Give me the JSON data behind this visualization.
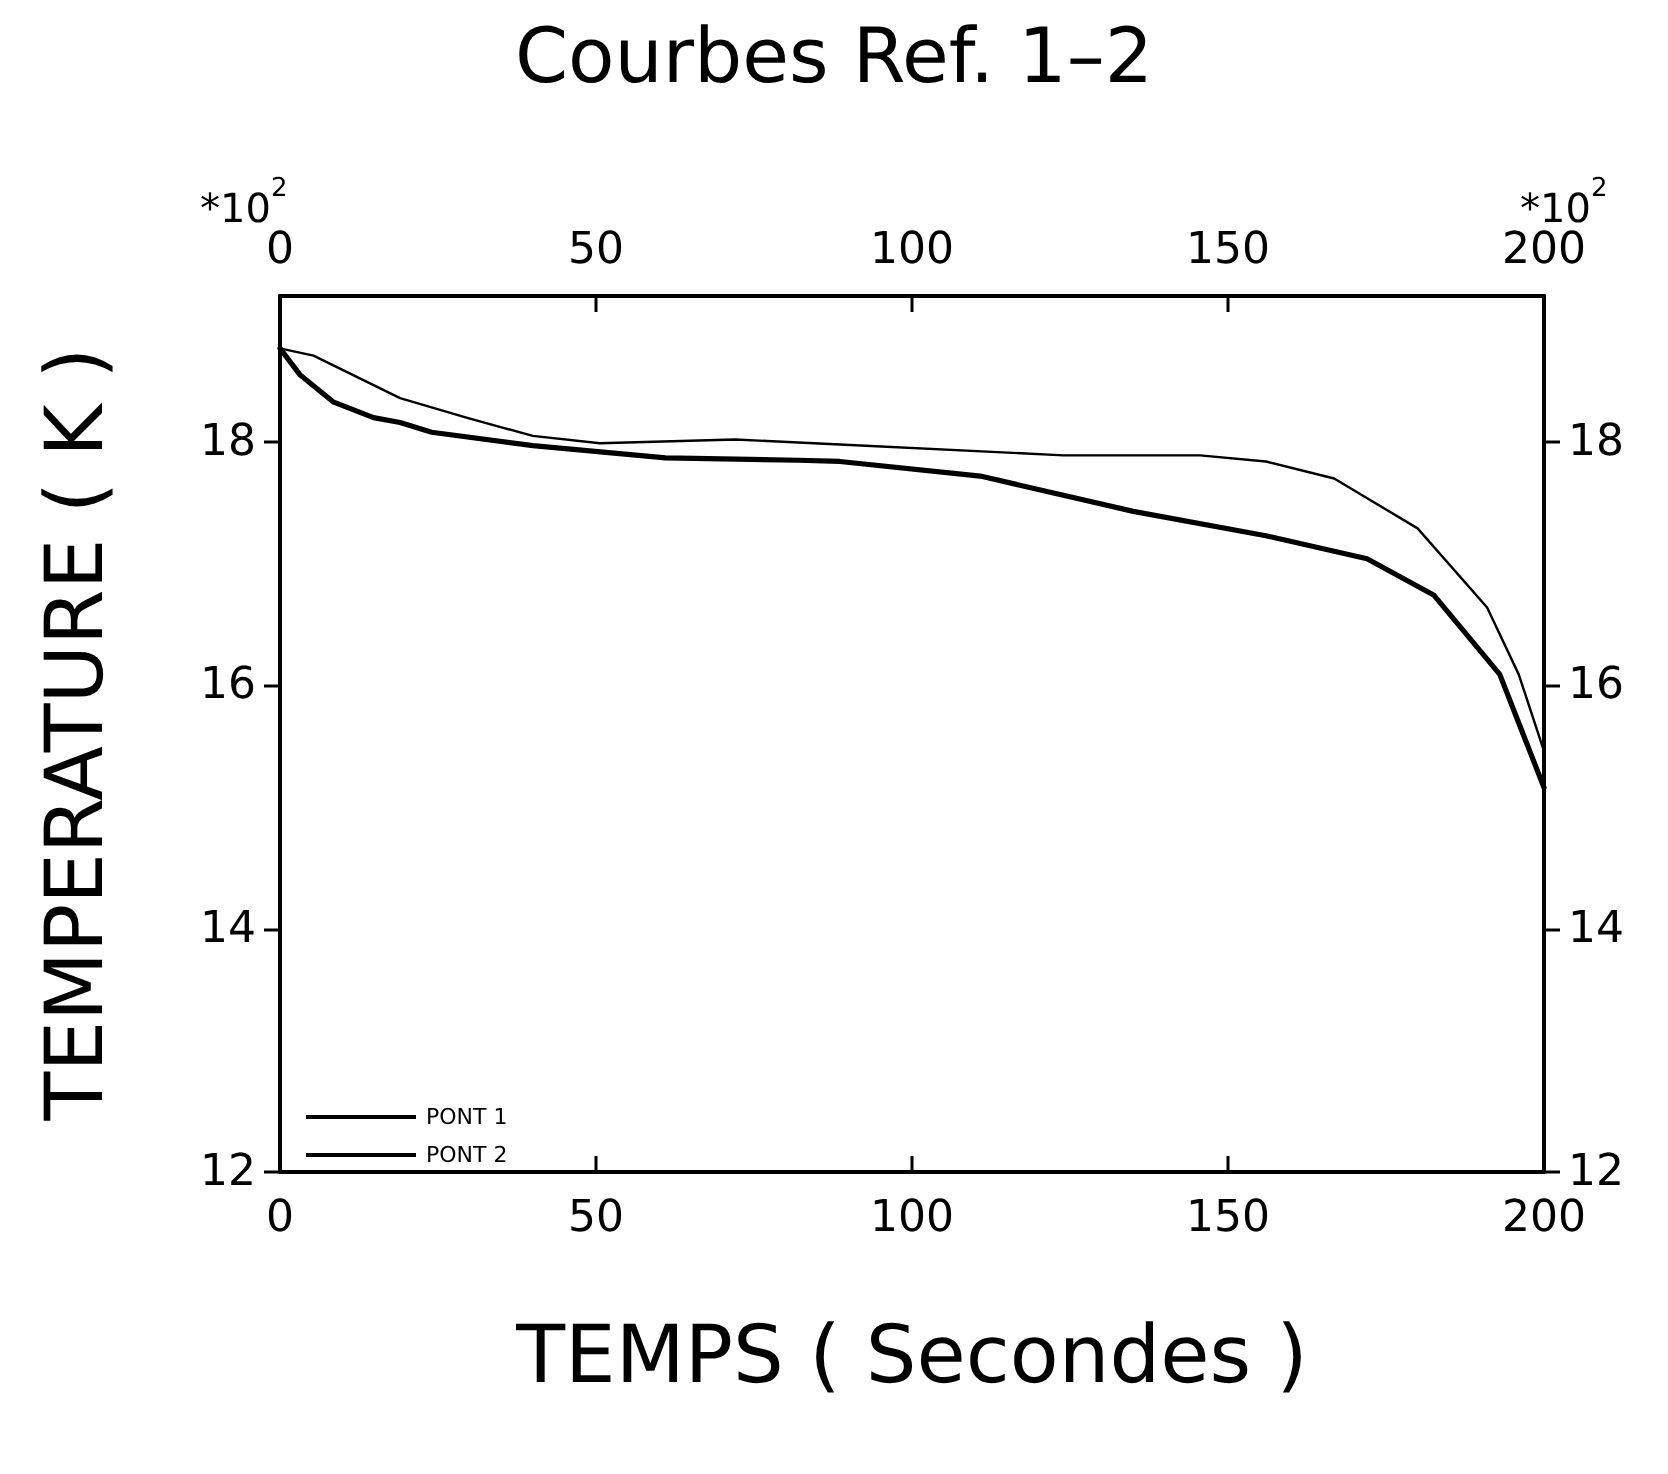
{
  "chart_data": {
    "type": "line",
    "title": "Courbes Ref. 1–2",
    "xlabel": "TEMPS ( Secondes )",
    "ylabel": "TEMPERATURE ( K )",
    "annotations": [
      "*10$^{2}$",
      "*10$^{2}$"
    ],
    "series": [
      {
        "name": "PONT 1",
        "color": "#000000",
        "x": [
          0,
          3.2,
          8.4,
          14.8,
          19,
          24,
          40,
          61,
          82,
          88.6,
          110.8,
          135,
          156,
          172,
          182.6,
          193,
          200
        ],
        "values": [
          18.77,
          18.55,
          18.33,
          18.2,
          18.16,
          18.08,
          17.97,
          17.87,
          17.85,
          17.84,
          17.72,
          17.43,
          17.23,
          17.04,
          16.74,
          16.09,
          15.16
        ]
      },
      {
        "name": "PONT 2",
        "color": "#000000",
        "x": [
          0,
          5.3,
          19,
          29.5,
          40,
          50.6,
          72,
          88.6,
          124,
          145.6,
          156,
          166.8,
          180,
          191,
          196,
          200
        ],
        "values": [
          18.77,
          18.71,
          18.36,
          18.2,
          18.05,
          17.99,
          18.02,
          17.98,
          17.89,
          17.89,
          17.84,
          17.7,
          17.29,
          16.64,
          16.09,
          15.46
        ]
      }
    ],
    "xlim": [
      0,
      200
    ],
    "xticks": [
      0,
      50,
      100,
      150,
      200
    ],
    "x2lim": [
      0,
      200
    ],
    "x2ticks": [
      0,
      50,
      100,
      150,
      200
    ],
    "ylim": [
      12,
      19.2
    ],
    "yticks": [
      12,
      14,
      16,
      18
    ],
    "y2lim": [
      12,
      19.2
    ],
    "y2ticks": [
      12,
      14,
      16,
      18
    ],
    "grid": false,
    "legend": "bottom left",
    "marker": "none",
    "line_style": "solid"
  }
}
